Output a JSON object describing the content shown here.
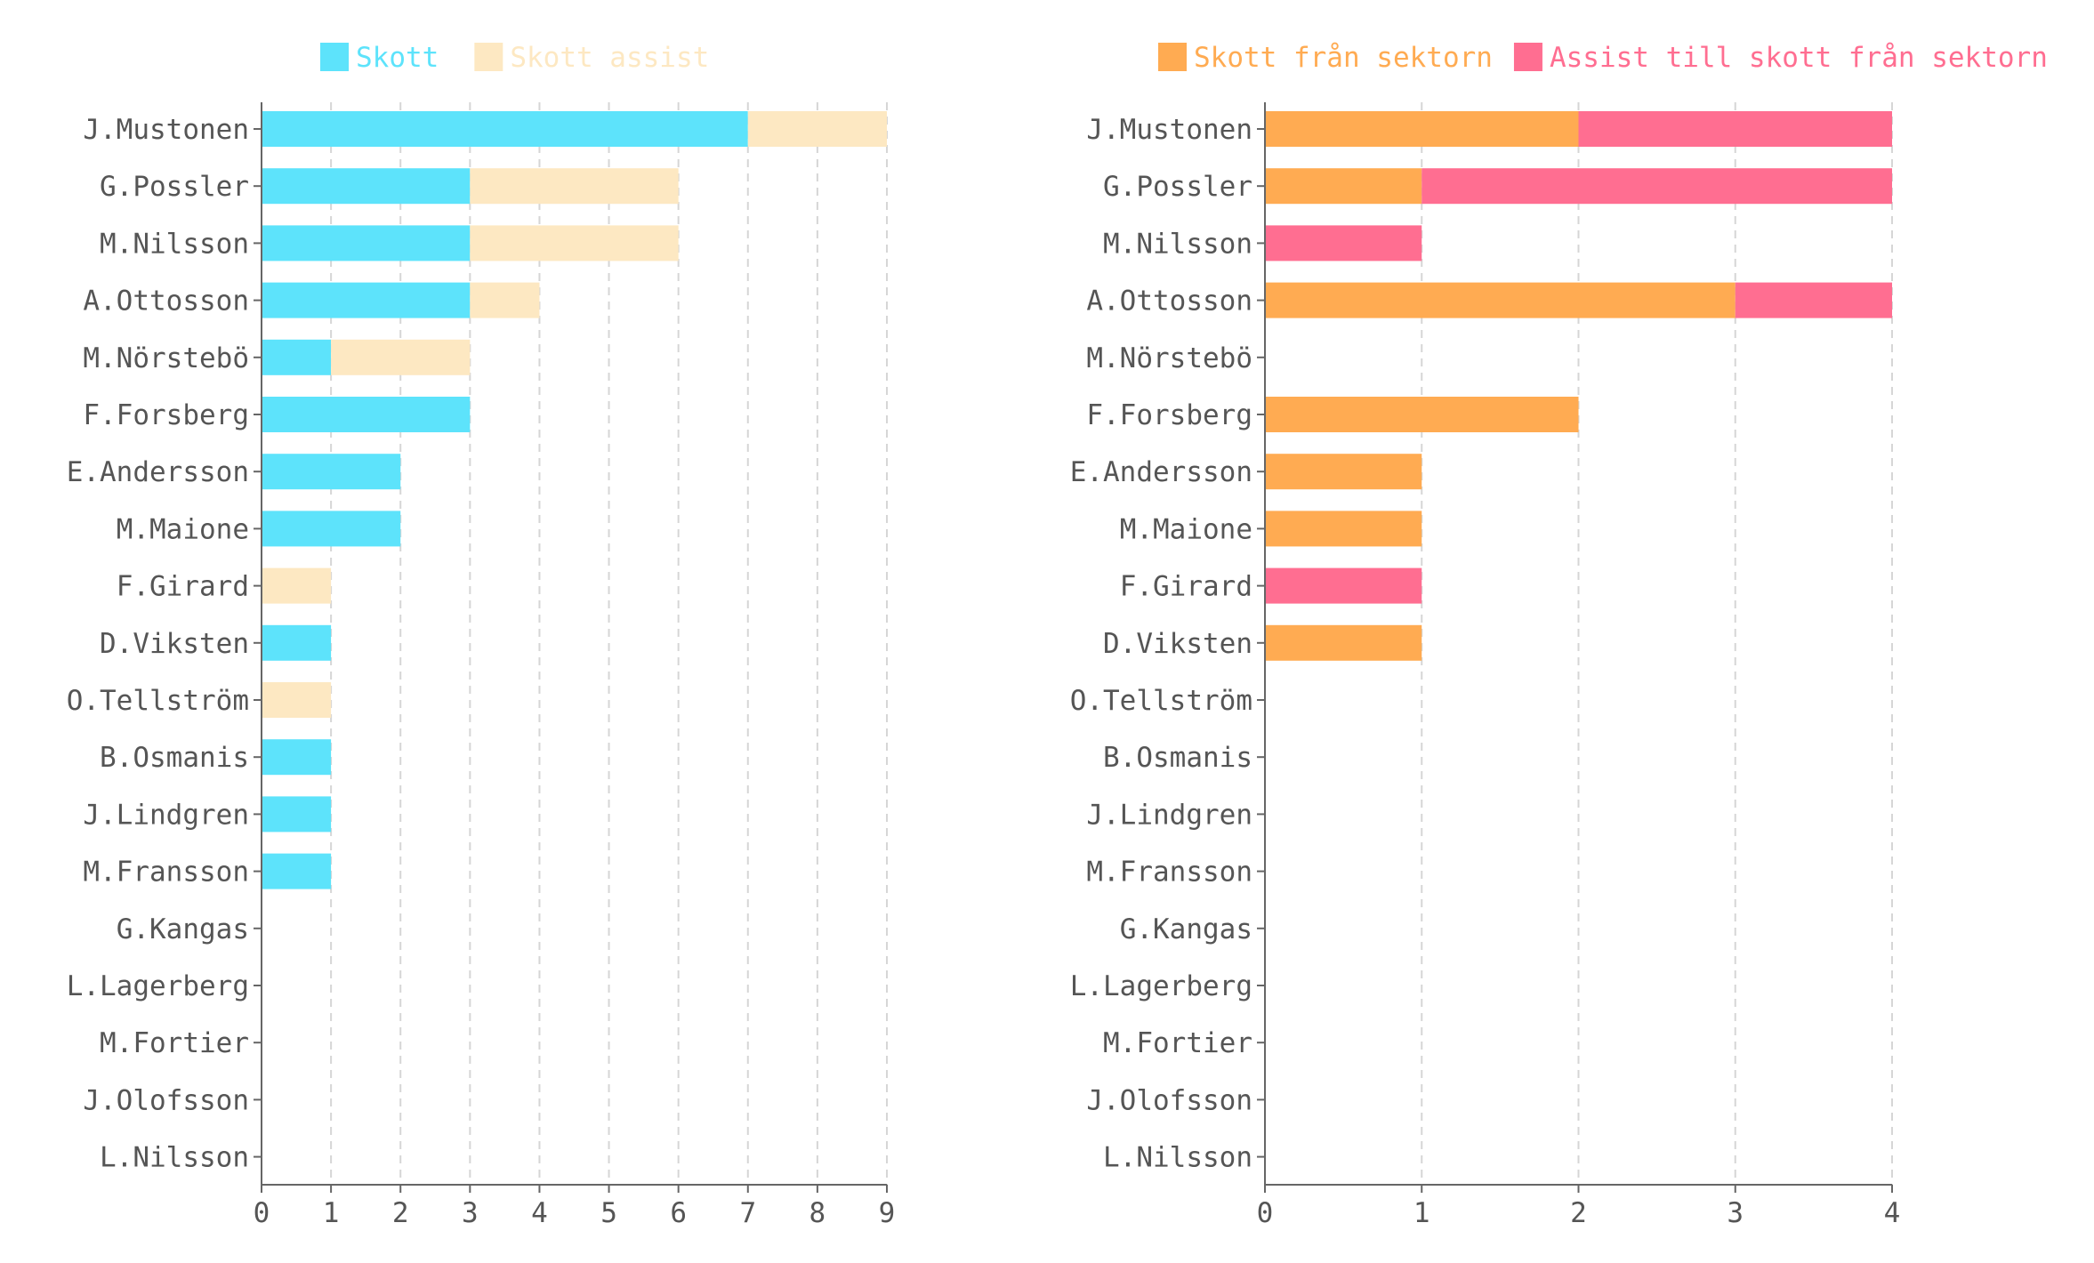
{
  "chart_data": [
    {
      "type": "bar",
      "orientation": "horizontal",
      "stacked": true,
      "categories": [
        "J.Mustonen",
        "G.Possler",
        "M.Nilsson",
        "A.Ottosson",
        "M.Nörstebö",
        "F.Forsberg",
        "E.Andersson",
        "M.Maione",
        "F.Girard",
        "D.Viksten",
        "O.Tellström",
        "B.Osmanis",
        "J.Lindgren",
        "M.Fransson",
        "G.Kangas",
        "L.Lagerberg",
        "M.Fortier",
        "J.Olofsson",
        "L.Nilsson"
      ],
      "series": [
        {
          "name": "Skott",
          "color": "#5de3fb",
          "values": [
            7,
            3,
            3,
            3,
            1,
            3,
            2,
            2,
            0,
            1,
            0,
            1,
            1,
            1,
            0,
            0,
            0,
            0,
            0
          ]
        },
        {
          "name": "Skott assist",
          "color": "#fde8c2",
          "values": [
            2,
            3,
            3,
            1,
            2,
            0,
            0,
            0,
            1,
            0,
            1,
            0,
            0,
            0,
            0,
            0,
            0,
            0,
            0
          ]
        }
      ],
      "xlim": [
        0,
        9
      ],
      "xticks": [
        "0",
        "1",
        "2",
        "3",
        "4",
        "5",
        "6",
        "7",
        "8",
        "9"
      ],
      "grid": "vertical dashed",
      "legend_position": "top"
    },
    {
      "type": "bar",
      "orientation": "horizontal",
      "stacked": true,
      "categories": [
        "J.Mustonen",
        "G.Possler",
        "M.Nilsson",
        "A.Ottosson",
        "M.Nörstebö",
        "F.Forsberg",
        "E.Andersson",
        "M.Maione",
        "F.Girard",
        "D.Viksten",
        "O.Tellström",
        "B.Osmanis",
        "J.Lindgren",
        "M.Fransson",
        "G.Kangas",
        "L.Lagerberg",
        "M.Fortier",
        "J.Olofsson",
        "L.Nilsson"
      ],
      "series": [
        {
          "name": "Skott från sektorn",
          "color": "#ffab52",
          "values": [
            2,
            1,
            0,
            3,
            0,
            2,
            1,
            1,
            0,
            1,
            0,
            0,
            0,
            0,
            0,
            0,
            0,
            0,
            0
          ]
        },
        {
          "name": "Assist till skott från sektorn",
          "color": "#ff6e91",
          "values": [
            2,
            3,
            1,
            1,
            0,
            0,
            0,
            0,
            1,
            0,
            0,
            0,
            0,
            0,
            0,
            0,
            0,
            0,
            0
          ]
        }
      ],
      "xlim": [
        0,
        4
      ],
      "xticks": [
        "0",
        "1",
        "2",
        "3",
        "4"
      ],
      "grid": "vertical dashed",
      "legend_position": "top"
    }
  ]
}
